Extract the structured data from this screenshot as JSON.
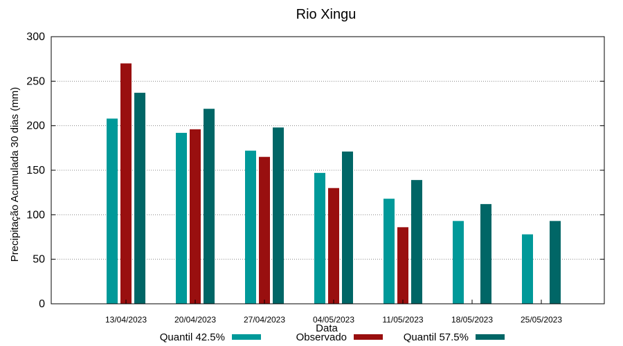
{
  "chart_data": {
    "type": "bar",
    "title": "Rio Xingu",
    "xlabel": "Data",
    "ylabel": "Precipitação Acumulada 30 dias (mm)",
    "ylim": [
      0,
      300
    ],
    "yticks": [
      0,
      50,
      100,
      150,
      200,
      250,
      300
    ],
    "grid": true,
    "legend_position": "bottom",
    "categories": [
      "13/04/2023",
      "20/04/2023",
      "27/04/2023",
      "04/05/2023",
      "11/05/2023",
      "18/05/2023",
      "25/05/2023"
    ],
    "series": [
      {
        "name": "Quantil 42.5%",
        "color": "#009999",
        "values": [
          208,
          192,
          172,
          147,
          118,
          93,
          78
        ]
      },
      {
        "name": "Observado",
        "color": "#990f0f",
        "values": [
          270,
          196,
          165,
          130,
          86,
          null,
          null
        ]
      },
      {
        "name": "Quantil 57.5%",
        "color": "#006666",
        "values": [
          237,
          219,
          198,
          171,
          139,
          112,
          93
        ]
      }
    ]
  }
}
